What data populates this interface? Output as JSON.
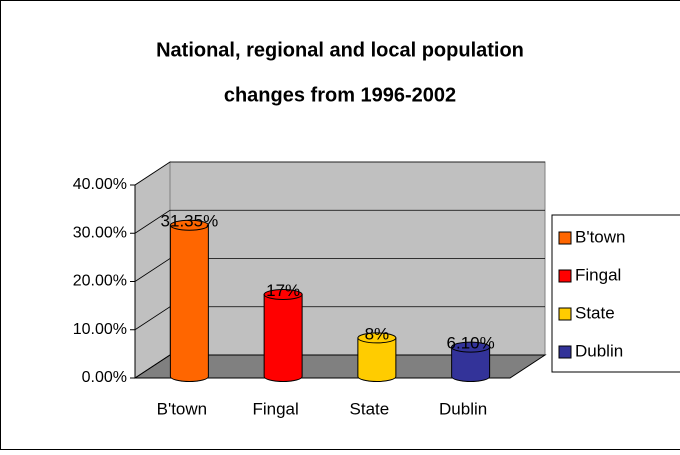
{
  "chart_data": {
    "type": "bar",
    "title": [
      "National, regional and local population",
      "changes from 1996-2002"
    ],
    "categories": [
      "B'town",
      "Fingal",
      "State",
      "Dublin"
    ],
    "values": [
      31.35,
      17,
      8,
      6.1
    ],
    "value_labels": [
      "31.35%",
      "17%",
      "8%",
      "6.10%"
    ],
    "colors": [
      "#ff6600",
      "#ff0000",
      "#ffcc00",
      "#333399"
    ],
    "ylim": [
      0,
      40
    ],
    "yticks": [
      {
        "value": 0,
        "label": "0.00%"
      },
      {
        "value": 10,
        "label": "10.00%"
      },
      {
        "value": 20,
        "label": "20.00%"
      },
      {
        "value": 30,
        "label": "30.00%"
      },
      {
        "value": 40,
        "label": "40.00%"
      }
    ],
    "grid": true,
    "legend": "right"
  }
}
